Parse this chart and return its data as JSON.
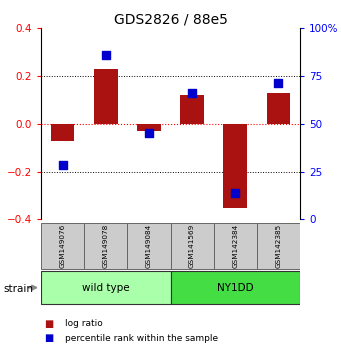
{
  "title": "GDS2826 / 88e5",
  "samples": [
    "GSM149076",
    "GSM149078",
    "GSM149084",
    "GSM141569",
    "GSM142384",
    "GSM142385"
  ],
  "log_ratios": [
    -0.07,
    0.23,
    -0.03,
    0.12,
    -0.35,
    0.13
  ],
  "percentile_dots_y": [
    -0.17,
    0.29,
    -0.04,
    0.13,
    -0.29,
    0.17
  ],
  "groups": [
    {
      "name": "wild type",
      "indices": [
        0,
        1,
        2
      ],
      "color": "#AAFFAA"
    },
    {
      "name": "NY1DD",
      "indices": [
        3,
        4,
        5
      ],
      "color": "#44DD44"
    }
  ],
  "strain_label": "strain",
  "ylim_left": [
    -0.4,
    0.4
  ],
  "ylim_right": [
    0,
    100
  ],
  "yticks_left": [
    -0.4,
    -0.2,
    0.0,
    0.2,
    0.4
  ],
  "yticks_right": [
    0,
    25,
    50,
    75,
    100
  ],
  "bar_color": "#AA1111",
  "dot_color": "#0000CC",
  "legend_items": [
    "log ratio",
    "percentile rank within the sample"
  ],
  "bg_color": "#FFFFFF"
}
